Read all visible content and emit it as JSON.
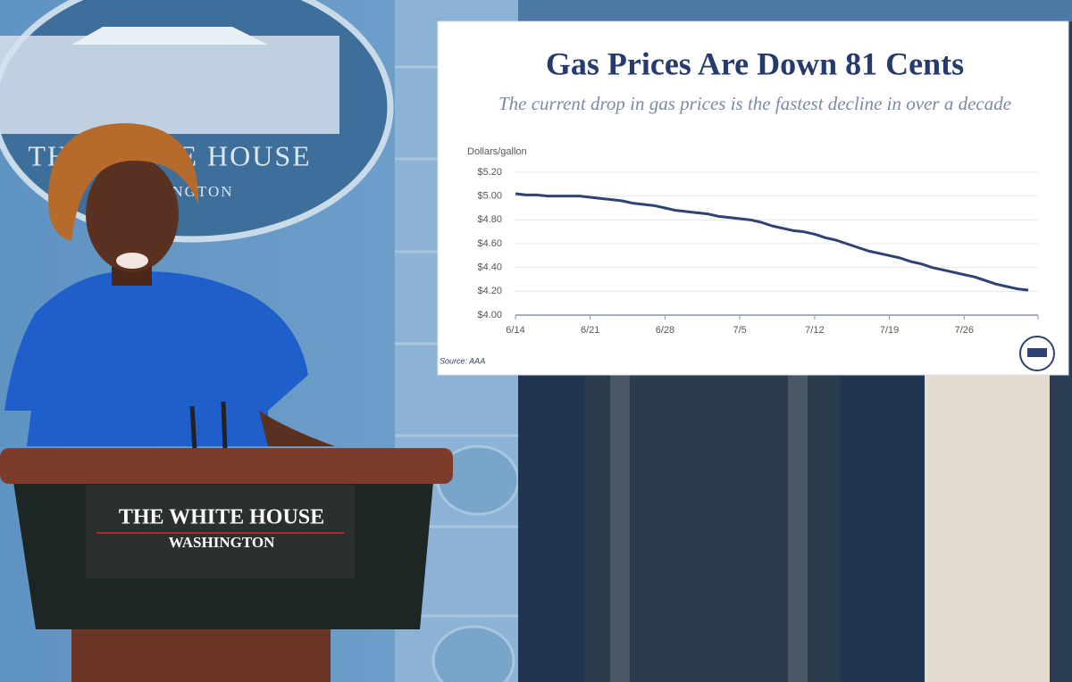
{
  "scene": {
    "seal": {
      "line1": "THE WHITE HOUSE",
      "line2": "WASHINGTON"
    },
    "podium": {
      "line1": "THE WHITE HOUSE",
      "line2": "WASHINGTON"
    }
  },
  "chart_data": {
    "type": "line",
    "title": "Gas Prices Are Down 81 Cents",
    "subtitle": "The current drop in gas prices is the fastest decline in over a decade",
    "y_label": "Dollars/gallon",
    "source": "Source: AAA",
    "categories": [
      "6/14",
      null,
      null,
      null,
      null,
      null,
      null,
      "6/21",
      null,
      null,
      null,
      null,
      null,
      null,
      "6/28",
      null,
      null,
      null,
      null,
      null,
      null,
      "7/5",
      null,
      null,
      null,
      null,
      null,
      null,
      "7/12",
      null,
      null,
      null,
      null,
      null,
      null,
      "7/19",
      null,
      null,
      null,
      null,
      null,
      null,
      "7/26",
      null,
      null,
      null,
      null,
      null,
      null
    ],
    "series": [
      {
        "color": "#2e4274",
        "values": [
          5.02,
          5.01,
          5.01,
          5.0,
          5.0,
          5.0,
          5.0,
          4.99,
          4.98,
          4.97,
          4.96,
          4.94,
          4.93,
          4.92,
          4.9,
          4.88,
          4.87,
          4.86,
          4.85,
          4.83,
          4.82,
          4.81,
          4.8,
          4.78,
          4.75,
          4.73,
          4.71,
          4.7,
          4.68,
          4.65,
          4.63,
          4.6,
          4.57,
          4.54,
          4.52,
          4.5,
          4.48,
          4.45,
          4.43,
          4.4,
          4.38,
          4.36,
          4.34,
          4.32,
          4.29,
          4.26,
          4.24,
          4.22,
          4.21
        ]
      }
    ],
    "ylim": [
      4.0,
      5.2
    ],
    "yticks": [
      {
        "value": 4.0,
        "label": "$4.00"
      },
      {
        "value": 4.2,
        "label": "$4.20"
      },
      {
        "value": 4.4,
        "label": "$4.40"
      },
      {
        "value": 4.6,
        "label": "$4.60"
      },
      {
        "value": 4.8,
        "label": "$4.80"
      },
      {
        "value": 5.0,
        "label": "$5.00"
      },
      {
        "value": 5.2,
        "label": "$5.20"
      }
    ],
    "grid": true
  }
}
